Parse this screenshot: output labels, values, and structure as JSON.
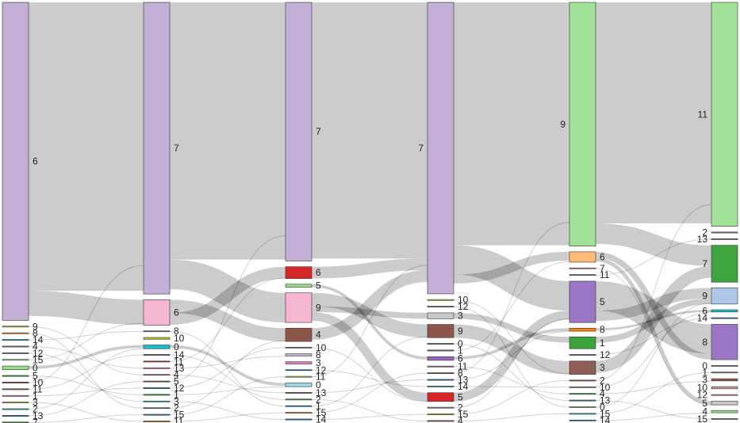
{
  "diagram": {
    "type": "sankey",
    "columns": [
      {
        "nodes": [
          {
            "label": "6",
            "value": 2150,
            "color": "#c5b0d5"
          },
          {
            "label": "9",
            "value": 3,
            "color": "#bcbd22"
          },
          {
            "label": "8",
            "value": 3,
            "color": "#ff7f0e"
          },
          {
            "label": "14",
            "value": 3,
            "color": "#17becf"
          },
          {
            "label": "4",
            "value": 3,
            "color": "#9467bd"
          },
          {
            "label": "12",
            "value": 3,
            "color": "#7f7f7f"
          },
          {
            "label": "15",
            "value": 3,
            "color": "#98df8a"
          },
          {
            "label": "0",
            "value": 25,
            "color": "#98df8a"
          },
          {
            "label": "5",
            "value": 3,
            "color": "#2ca02c"
          },
          {
            "label": "10",
            "value": 3,
            "color": "#d62728"
          },
          {
            "label": "11",
            "value": 3,
            "color": "#8c564b"
          },
          {
            "label": "1",
            "value": 3,
            "color": "#e377c2"
          },
          {
            "label": "3",
            "value": 3,
            "color": "#bcbd22"
          },
          {
            "label": "2",
            "value": 3,
            "color": "#17becf"
          },
          {
            "label": "13",
            "value": 3,
            "color": "#1f77b4"
          },
          {
            "label": "7",
            "value": 3,
            "color": "#2ca02c"
          }
        ]
      },
      {
        "nodes": [
          {
            "label": "7",
            "value": 1950,
            "color": "#c5b0d5"
          },
          {
            "label": "6",
            "value": 170,
            "color": "#f7b6d2"
          },
          {
            "label": "8",
            "value": 3,
            "color": "#7f7f7f"
          },
          {
            "label": "10",
            "value": 12,
            "color": "#bcbd22"
          },
          {
            "label": "0",
            "value": 25,
            "color": "#17becf"
          },
          {
            "label": "14",
            "value": 3,
            "color": "#8c564b"
          },
          {
            "label": "11",
            "value": 3,
            "color": "#d62728"
          },
          {
            "label": "13",
            "value": 3,
            "color": "#e377c2"
          },
          {
            "label": "4",
            "value": 3,
            "color": "#9467bd"
          },
          {
            "label": "5",
            "value": 3,
            "color": "#8c564b"
          },
          {
            "label": "12",
            "value": 3,
            "color": "#1f77b4"
          },
          {
            "label": "1",
            "value": 3,
            "color": "#2ca02c"
          },
          {
            "label": "3",
            "value": 3,
            "color": "#17becf"
          },
          {
            "label": "2",
            "value": 3,
            "color": "#7f7f7f"
          },
          {
            "label": "15",
            "value": 3,
            "color": "#1f77b4"
          },
          {
            "label": "11",
            "value": 3,
            "color": "#ff7f0e"
          }
        ]
      },
      {
        "nodes": [
          {
            "label": "7",
            "value": 1750,
            "color": "#c5b0d5"
          },
          {
            "label": "6",
            "value": 80,
            "color": "#d62728"
          },
          {
            "label": "5",
            "value": 20,
            "color": "#98df8a"
          },
          {
            "label": "9",
            "value": 200,
            "color": "#f7b6d2"
          },
          {
            "label": "4",
            "value": 90,
            "color": "#8c564b"
          },
          {
            "label": "10",
            "value": 3,
            "color": "#7f7f7f"
          },
          {
            "label": "8",
            "value": 15,
            "color": "#c5b0d5"
          },
          {
            "label": "3",
            "value": 15,
            "color": "#e377c2"
          },
          {
            "label": "12",
            "value": 3,
            "color": "#1f77b4"
          },
          {
            "label": "11",
            "value": 3,
            "color": "#bcbd22"
          },
          {
            "label": "0",
            "value": 25,
            "color": "#9edae5"
          },
          {
            "label": "13",
            "value": 3,
            "color": "#8c564b"
          },
          {
            "label": "2",
            "value": 3,
            "color": "#2ca02c"
          },
          {
            "label": "1",
            "value": 3,
            "color": "#1f77b4"
          },
          {
            "label": "15",
            "value": 3,
            "color": "#ff7f0e"
          },
          {
            "label": "14",
            "value": 3,
            "color": "#1f77b4"
          }
        ]
      },
      {
        "nodes": [
          {
            "label": "7",
            "value": 1980,
            "color": "#c5b0d5"
          },
          {
            "label": "10",
            "value": 3,
            "color": "#bcbd22"
          },
          {
            "label": "12",
            "value": 3,
            "color": "#7f7f7f"
          },
          {
            "label": "3",
            "value": 40,
            "color": "#c7c7c7"
          },
          {
            "label": "9",
            "value": 90,
            "color": "#8c564b"
          },
          {
            "label": "0",
            "value": 3,
            "color": "#7f7f7f"
          },
          {
            "label": "1",
            "value": 3,
            "color": "#8c564b"
          },
          {
            "label": "6",
            "value": 25,
            "color": "#9467bd"
          },
          {
            "label": "11",
            "value": 3,
            "color": "#7f7f7f"
          },
          {
            "label": "8",
            "value": 3,
            "color": "#8c564b"
          },
          {
            "label": "13",
            "value": 3,
            "color": "#1f77b4"
          },
          {
            "label": "14",
            "value": 3,
            "color": "#17becf"
          },
          {
            "label": "5",
            "value": 60,
            "color": "#d62728"
          },
          {
            "label": "2",
            "value": 3,
            "color": "#7f7f7f"
          },
          {
            "label": "15",
            "value": 3,
            "color": "#bcbd22"
          },
          {
            "label": "4",
            "value": 3,
            "color": "#8c564b"
          }
        ]
      },
      {
        "nodes": [
          {
            "label": "9",
            "value": 1650,
            "color": "#a1e19a"
          },
          {
            "label": "6",
            "value": 70,
            "color": "#ffbb78"
          },
          {
            "label": "7",
            "value": 3,
            "color": "#e377c2"
          },
          {
            "label": "11",
            "value": 3,
            "color": "#7f7f7f"
          },
          {
            "label": "5",
            "value": 280,
            "color": "#9a76c4"
          },
          {
            "label": "8",
            "value": 20,
            "color": "#ff7f0e"
          },
          {
            "label": "1",
            "value": 80,
            "color": "#3da33d"
          },
          {
            "label": "12",
            "value": 3,
            "color": "#7f7f7f"
          },
          {
            "label": "3",
            "value": 90,
            "color": "#8c5e54"
          },
          {
            "label": "2",
            "value": 3,
            "color": "#8c564b"
          },
          {
            "label": "10",
            "value": 3,
            "color": "#7f7f7f"
          },
          {
            "label": "4",
            "value": 3,
            "color": "#2ca02c"
          },
          {
            "label": "13",
            "value": 3,
            "color": "#1f77b4"
          },
          {
            "label": "0",
            "value": 3,
            "color": "#98df8a"
          },
          {
            "label": "15",
            "value": 3,
            "color": "#17becf"
          },
          {
            "label": "14",
            "value": 3,
            "color": "#1f77b4"
          }
        ]
      },
      {
        "nodes": [
          {
            "label": "11",
            "value": 1520,
            "color": "#a1e19a"
          },
          {
            "label": "2",
            "value": 3,
            "color": "#7f7f7f"
          },
          {
            "label": "13",
            "value": 3,
            "color": "#7f7f7f"
          },
          {
            "label": "7",
            "value": 250,
            "color": "#3da33d"
          },
          {
            "label": "9",
            "value": 110,
            "color": "#aec7e8"
          },
          {
            "label": "6",
            "value": 15,
            "color": "#17becf"
          },
          {
            "label": "14",
            "value": 3,
            "color": "#1f77b4"
          },
          {
            "label": "8",
            "value": 240,
            "color": "#9a76c4"
          },
          {
            "label": "0",
            "value": 3,
            "color": "#7f7f7f"
          },
          {
            "label": "1",
            "value": 3,
            "color": "#7f7f7f"
          },
          {
            "label": "3",
            "value": 15,
            "color": "#8c564b"
          },
          {
            "label": "10",
            "value": 15,
            "color": "#c49c94"
          },
          {
            "label": "12",
            "value": 3,
            "color": "#e377c2"
          },
          {
            "label": "5",
            "value": 25,
            "color": "#c7c7c7"
          },
          {
            "label": "4",
            "value": 15,
            "color": "#98df8a"
          },
          {
            "label": "15",
            "value": 3,
            "color": "#7f7f7f"
          }
        ]
      }
    ],
    "flows": [
      {
        "from": [
          0,
          0
        ],
        "to": [
          1,
          0
        ],
        "value": 1950
      },
      {
        "from": [
          0,
          0
        ],
        "to": [
          1,
          1
        ],
        "value": 170
      },
      {
        "from": [
          0,
          7
        ],
        "to": [
          1,
          4
        ],
        "value": 20
      },
      {
        "from": [
          1,
          0
        ],
        "to": [
          2,
          0
        ],
        "value": 1740
      },
      {
        "from": [
          1,
          0
        ],
        "to": [
          2,
          3
        ],
        "value": 200
      },
      {
        "from": [
          1,
          1
        ],
        "to": [
          2,
          4
        ],
        "value": 90
      },
      {
        "from": [
          1,
          1
        ],
        "to": [
          2,
          1
        ],
        "value": 80
      },
      {
        "from": [
          1,
          4
        ],
        "to": [
          2,
          10
        ],
        "value": 20
      },
      {
        "from": [
          2,
          0
        ],
        "to": [
          3,
          0
        ],
        "value": 1740
      },
      {
        "from": [
          2,
          3
        ],
        "to": [
          3,
          4
        ],
        "value": 90
      },
      {
        "from": [
          2,
          3
        ],
        "to": [
          3,
          3
        ],
        "value": 40
      },
      {
        "from": [
          2,
          3
        ],
        "to": [
          3,
          12
        ],
        "value": 60
      },
      {
        "from": [
          2,
          1
        ],
        "to": [
          3,
          0
        ],
        "value": 80
      },
      {
        "from": [
          2,
          4
        ],
        "to": [
          3,
          0
        ],
        "value": 80
      },
      {
        "from": [
          2,
          2
        ],
        "to": [
          3,
          7
        ],
        "value": 20
      },
      {
        "from": [
          3,
          0
        ],
        "to": [
          4,
          0
        ],
        "value": 1650
      },
      {
        "from": [
          3,
          0
        ],
        "to": [
          4,
          4
        ],
        "value": 200
      },
      {
        "from": [
          3,
          0
        ],
        "to": [
          4,
          1
        ],
        "value": 60
      },
      {
        "from": [
          3,
          4
        ],
        "to": [
          4,
          8
        ],
        "value": 90
      },
      {
        "from": [
          3,
          12
        ],
        "to": [
          4,
          4
        ],
        "value": 60
      },
      {
        "from": [
          3,
          3
        ],
        "to": [
          4,
          6
        ],
        "value": 40
      },
      {
        "from": [
          3,
          7
        ],
        "to": [
          4,
          5
        ],
        "value": 20
      },
      {
        "from": [
          4,
          0
        ],
        "to": [
          5,
          0
        ],
        "value": 1500
      },
      {
        "from": [
          4,
          0
        ],
        "to": [
          5,
          3
        ],
        "value": 140
      },
      {
        "from": [
          4,
          4
        ],
        "to": [
          5,
          7
        ],
        "value": 200
      },
      {
        "from": [
          4,
          4
        ],
        "to": [
          5,
          4
        ],
        "value": 70
      },
      {
        "from": [
          4,
          8
        ],
        "to": [
          5,
          3
        ],
        "value": 80
      },
      {
        "from": [
          4,
          6
        ],
        "to": [
          5,
          4
        ],
        "value": 40
      },
      {
        "from": [
          4,
          1
        ],
        "to": [
          5,
          7
        ],
        "value": 40
      },
      {
        "from": [
          4,
          1
        ],
        "to": [
          5,
          13
        ],
        "value": 25
      },
      {
        "from": [
          4,
          5
        ],
        "to": [
          5,
          5
        ],
        "value": 15
      }
    ]
  }
}
